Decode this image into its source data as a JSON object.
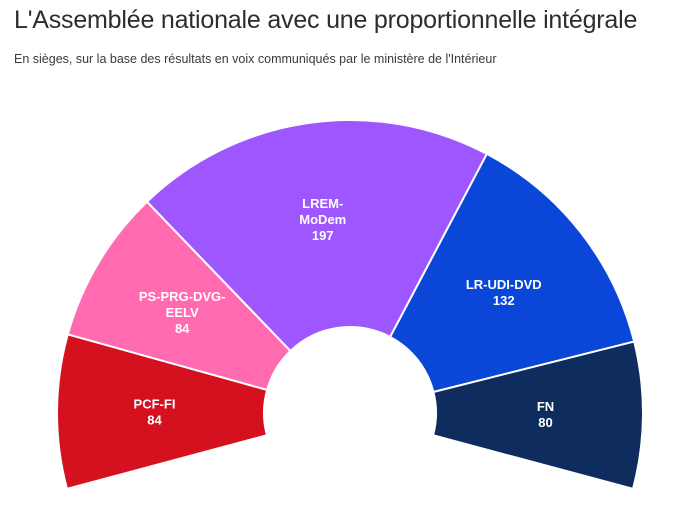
{
  "chart_data": {
    "type": "pie",
    "shape": "half-donut",
    "title": "L'Assemblée nationale avec une proportionnelle intégrale",
    "subtitle": "En sièges, sur la base des résultats en voix communiqués par le ministère de l'Intérieur",
    "unit": "sièges",
    "series": [
      {
        "name": "PCF-FI",
        "label_lines": [
          "PCF-FI"
        ],
        "value": 84,
        "color": "#d5101f"
      },
      {
        "name": "PS-PRG-DVG-EELV",
        "label_lines": [
          "PS-PRG-DVG-",
          "EELV"
        ],
        "value": 84,
        "color": "#ff6ab0"
      },
      {
        "name": "LREM-MoDem",
        "label_lines": [
          "LREM-",
          "MoDem"
        ],
        "value": 197,
        "color": "#9e57ff"
      },
      {
        "name": "LR-UDI-DVD",
        "label_lines": [
          "LR-UDI-DVD"
        ],
        "value": 132,
        "color": "#0a47d8"
      },
      {
        "name": "FN",
        "label_lines": [
          "FN"
        ],
        "value": 80,
        "color": "#0f2c5e"
      }
    ]
  }
}
